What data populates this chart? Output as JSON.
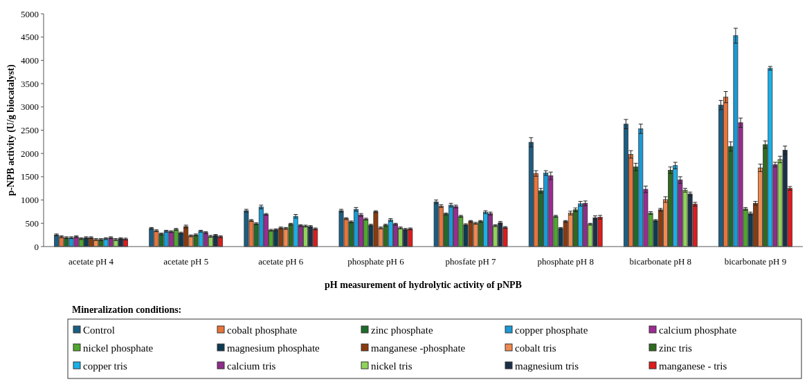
{
  "chart_data": {
    "type": "bar",
    "xlabel": "pH measurement of hydrolytic activity of pNPB",
    "ylabel": "p-NPB activity (U/g biocatalyst)",
    "legend_title": "Mineralization conditions:",
    "legend": "bottom",
    "grid": false,
    "categories": [
      "acetate pH 4",
      "acetate pH 5",
      "acetate pH 6",
      "phosphate pH 6",
      "phosfate pH 7",
      "phosphate pH 8",
      "bicarbonate pH 8",
      "bicarbonate pH 9"
    ],
    "ylim": [
      0,
      5000
    ],
    "yticks": [
      0,
      500,
      1000,
      1500,
      2000,
      2500,
      3000,
      3500,
      4000,
      4500,
      5000
    ],
    "series": [
      {
        "name": "Control",
        "color": "#1b5e84",
        "values": [
          250,
          390,
          770,
          770,
          960,
          2240,
          2630,
          3040
        ],
        "errors": [
          20,
          20,
          30,
          30,
          40,
          100,
          100,
          100
        ]
      },
      {
        "name": "cobalt phosphate",
        "color": "#e8743b",
        "values": [
          210,
          340,
          560,
          600,
          870,
          1570,
          1980,
          3210
        ],
        "errors": [
          20,
          20,
          20,
          20,
          30,
          60,
          80,
          120
        ]
      },
      {
        "name": "zinc phosphate",
        "color": "#1e6b2a",
        "values": [
          190,
          270,
          490,
          530,
          700,
          1200,
          1710,
          2150
        ],
        "errors": [
          20,
          20,
          20,
          20,
          20,
          50,
          80,
          100
        ]
      },
      {
        "name": "copper phosphate",
        "color": "#1a9ad6",
        "values": [
          190,
          330,
          850,
          800,
          890,
          1580,
          2530,
          4530
        ],
        "errors": [
          20,
          20,
          40,
          40,
          40,
          50,
          100,
          160
        ]
      },
      {
        "name": "calcium phosphate",
        "color": "#9c2b93",
        "values": [
          210,
          320,
          690,
          680,
          860,
          1520,
          1230,
          2660
        ],
        "errors": [
          20,
          20,
          20,
          30,
          30,
          80,
          70,
          100
        ]
      },
      {
        "name": "nickel phosphate",
        "color": "#4ea72e",
        "values": [
          170,
          370,
          350,
          590,
          650,
          650,
          720,
          810
        ],
        "errors": [
          20,
          20,
          20,
          20,
          20,
          20,
          30,
          30
        ]
      },
      {
        "name": "magnesium phosphate",
        "color": "#0d3a52",
        "values": [
          190,
          290,
          360,
          460,
          470,
          390,
          560,
          710
        ],
        "errors": [
          20,
          20,
          20,
          20,
          20,
          20,
          20,
          30
        ]
      },
      {
        "name": "manganese -phosphate",
        "color": "#8b3a0e",
        "values": [
          190,
          430,
          400,
          750,
          540,
          540,
          790,
          930
        ],
        "errors": [
          20,
          30,
          20,
          20,
          20,
          20,
          30,
          40
        ]
      },
      {
        "name": "cobalt tris",
        "color": "#f08a50",
        "values": [
          150,
          230,
          390,
          400,
          500,
          720,
          1010,
          1690
        ],
        "errors": [
          20,
          20,
          20,
          20,
          20,
          40,
          60,
          80
        ]
      },
      {
        "name": "zinc tris",
        "color": "#2e6b1f",
        "values": [
          150,
          250,
          480,
          460,
          540,
          790,
          1640,
          2190
        ],
        "errors": [
          20,
          20,
          20,
          20,
          20,
          40,
          70,
          80
        ]
      },
      {
        "name": "copper tris",
        "color": "#1ab0e8",
        "values": [
          170,
          330,
          650,
          570,
          740,
          920,
          1740,
          3830
        ],
        "errors": [
          20,
          20,
          40,
          30,
          30,
          50,
          70,
          40
        ]
      },
      {
        "name": "calcium tris",
        "color": "#8e2c8a",
        "values": [
          190,
          300,
          450,
          480,
          710,
          930,
          1430,
          1760
        ],
        "errors": [
          20,
          20,
          20,
          20,
          30,
          50,
          70,
          50
        ]
      },
      {
        "name": "nickel tris",
        "color": "#8fd35a",
        "values": [
          150,
          220,
          440,
          400,
          450,
          480,
          1210,
          1870
        ],
        "errors": [
          20,
          20,
          20,
          20,
          20,
          20,
          40,
          70
        ]
      },
      {
        "name": "magnesium tris",
        "color": "#1c2f48",
        "values": [
          170,
          240,
          430,
          370,
          510,
          620,
          1130,
          2070
        ],
        "errors": [
          20,
          20,
          20,
          20,
          30,
          40,
          40,
          90
        ]
      },
      {
        "name": "manganese - tris",
        "color": "#e01b1b",
        "values": [
          160,
          210,
          380,
          380,
          410,
          630,
          910,
          1250
        ],
        "errors": [
          20,
          20,
          20,
          20,
          20,
          40,
          40,
          40
        ]
      }
    ]
  }
}
